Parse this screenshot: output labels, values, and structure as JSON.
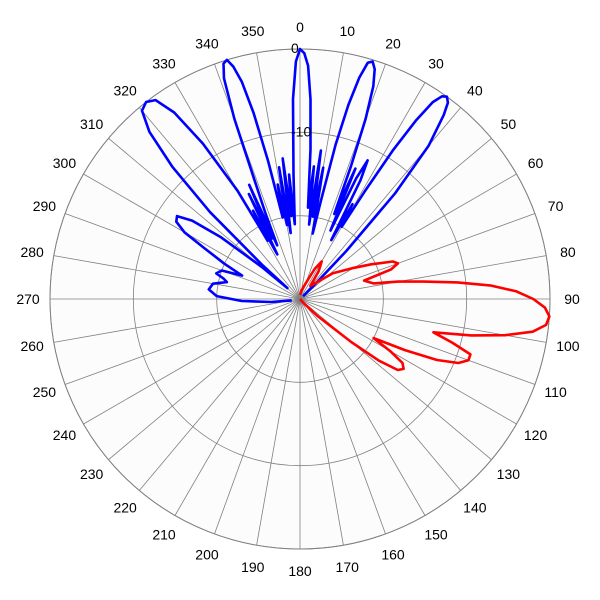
{
  "chart_data": {
    "type": "polar-line",
    "angle_unit": "degrees",
    "angle_zero": "top",
    "angle_direction": "clockwise",
    "angle_ticks": [
      0,
      10,
      20,
      30,
      40,
      50,
      60,
      70,
      80,
      90,
      100,
      110,
      120,
      130,
      140,
      150,
      160,
      170,
      180,
      190,
      200,
      210,
      220,
      230,
      240,
      250,
      260,
      270,
      280,
      290,
      300,
      310,
      320,
      330,
      340,
      350
    ],
    "angle_tick_labels": [
      "0",
      "10",
      "20",
      "30",
      "40",
      "50",
      "60",
      "70",
      "80",
      "90",
      "100",
      "110",
      "120",
      "130",
      "140",
      "150",
      "160",
      "170",
      "180",
      "190",
      "200",
      "210",
      "220",
      "230",
      "240",
      "250",
      "260",
      "270",
      "280",
      "290",
      "300",
      "310",
      "320",
      "330",
      "340",
      "350"
    ],
    "r_range": [
      -30,
      0
    ],
    "r_rings": [
      0,
      -10,
      -20
    ],
    "r_tick_labels": [
      "0",
      "-10"
    ],
    "grid": true,
    "colors": {
      "background": "#fcfcfc",
      "grid": "#808080",
      "blue": "#0000ff",
      "red": "#ff0000"
    },
    "series": [
      {
        "color": "#0000ff",
        "description": "multi-beam pattern, main lobes at -36, -18, 0, 18, 36 deg",
        "points": [
          [
            -100,
            -29
          ],
          [
            -96,
            -26.5
          ],
          [
            -92,
            -23
          ],
          [
            -88,
            -20
          ],
          [
            -84,
            -19
          ],
          [
            -80,
            -19.4
          ],
          [
            -77,
            -21
          ],
          [
            -75,
            -20.5
          ],
          [
            -73,
            -19.5
          ],
          [
            -70,
            -20
          ],
          [
            -68,
            -22.5
          ],
          [
            -65,
            -20
          ],
          [
            -62,
            -17
          ],
          [
            -60,
            -14
          ],
          [
            -58,
            -12.5
          ],
          [
            -56,
            -12.2
          ],
          [
            -54,
            -14
          ],
          [
            -52,
            -18
          ],
          [
            -50,
            -24
          ],
          [
            -49,
            -28
          ],
          [
            -48,
            -24
          ],
          [
            -46,
            -15
          ],
          [
            -44,
            -8
          ],
          [
            -42,
            -3
          ],
          [
            -40,
            -0.5
          ],
          [
            -38,
            0
          ],
          [
            -36,
            -0.5
          ],
          [
            -34,
            -3
          ],
          [
            -32,
            -8
          ],
          [
            -30,
            -15
          ],
          [
            -29,
            -22
          ],
          [
            -28,
            -18
          ],
          [
            -27,
            -24
          ],
          [
            -26,
            -16
          ],
          [
            -25,
            -22
          ],
          [
            -24,
            -15
          ],
          [
            -23,
            -23
          ],
          [
            -22,
            -19
          ],
          [
            -21,
            -15
          ],
          [
            -20,
            -7
          ],
          [
            -19,
            -2
          ],
          [
            -18,
            -0.3
          ],
          [
            -17,
            0
          ],
          [
            -16,
            -1
          ],
          [
            -15,
            -3
          ],
          [
            -14,
            -7
          ],
          [
            -13,
            -13
          ],
          [
            -12,
            -20
          ],
          [
            -11,
            -16
          ],
          [
            -10,
            -21
          ],
          [
            -9,
            -14
          ],
          [
            -8,
            -22
          ],
          [
            -7,
            -13
          ],
          [
            -6,
            -20
          ],
          [
            -5,
            -15
          ],
          [
            -4,
            -21
          ],
          [
            -3,
            -15
          ],
          [
            -2,
            -6
          ],
          [
            -1,
            -1.5
          ],
          [
            0,
            0
          ],
          [
            1,
            -0.5
          ],
          [
            2,
            -2
          ],
          [
            3,
            -6
          ],
          [
            4,
            -12
          ],
          [
            5,
            -19
          ],
          [
            6,
            -14
          ],
          [
            7,
            -21
          ],
          [
            8,
            -12
          ],
          [
            9,
            -20
          ],
          [
            10,
            -14
          ],
          [
            11,
            -22
          ],
          [
            12,
            -18
          ],
          [
            13,
            -11
          ],
          [
            14,
            -6
          ],
          [
            15,
            -2.5
          ],
          [
            16,
            -0.5
          ],
          [
            17,
            -0.2
          ],
          [
            18,
            -1
          ],
          [
            19,
            -3
          ],
          [
            20,
            -7
          ],
          [
            21,
            -13
          ],
          [
            22,
            -19
          ],
          [
            23,
            -13
          ],
          [
            24,
            -21
          ],
          [
            25,
            -14
          ],
          [
            26,
            -11.5
          ],
          [
            27,
            -14
          ],
          [
            28,
            -22
          ],
          [
            29,
            -17
          ],
          [
            30,
            -20
          ],
          [
            31,
            -15
          ],
          [
            32,
            -9
          ],
          [
            33,
            -4.5
          ],
          [
            34,
            -1.5
          ],
          [
            35,
            -0.3
          ],
          [
            36,
            0
          ],
          [
            37,
            -0.5
          ],
          [
            38,
            -2
          ],
          [
            40,
            -6
          ],
          [
            42,
            -13
          ],
          [
            44,
            -22
          ],
          [
            46,
            -28
          ],
          [
            48,
            -29.5
          ]
        ]
      },
      {
        "color": "#ff0000",
        "description": "single beam pointing near 94 deg",
        "points": [
          [
            0,
            -29.5
          ],
          [
            10,
            -29
          ],
          [
            20,
            -28
          ],
          [
            26,
            -26
          ],
          [
            30,
            -24.8
          ],
          [
            34,
            -26
          ],
          [
            38,
            -28
          ],
          [
            46,
            -27
          ],
          [
            52,
            -25
          ],
          [
            56,
            -24
          ],
          [
            60,
            -22.5
          ],
          [
            64,
            -20.5
          ],
          [
            68,
            -18
          ],
          [
            70,
            -17.5
          ],
          [
            72,
            -18.5
          ],
          [
            74,
            -22
          ],
          [
            78,
            -21
          ],
          [
            80,
            -18
          ],
          [
            82,
            -15
          ],
          [
            84,
            -11
          ],
          [
            86,
            -7
          ],
          [
            88,
            -4
          ],
          [
            90,
            -2
          ],
          [
            92,
            -0.6
          ],
          [
            94,
            0
          ],
          [
            96,
            -0.3
          ],
          [
            98,
            -1.8
          ],
          [
            100,
            -5
          ],
          [
            102,
            -9
          ],
          [
            104,
            -13.5
          ],
          [
            106,
            -11
          ],
          [
            108,
            -8.5
          ],
          [
            110,
            -8.5
          ],
          [
            112,
            -9.5
          ],
          [
            114,
            -12
          ],
          [
            116,
            -16
          ],
          [
            118,
            -20
          ],
          [
            120,
            -17.5
          ],
          [
            122,
            -15.5
          ],
          [
            124,
            -15
          ],
          [
            126,
            -15.5
          ],
          [
            128,
            -18
          ],
          [
            130,
            -22
          ],
          [
            134,
            -27
          ],
          [
            140,
            -29.5
          ],
          [
            160,
            -30
          ],
          [
            200,
            -30
          ],
          [
            260,
            -30
          ],
          [
            340,
            -30
          ]
        ]
      }
    ]
  }
}
